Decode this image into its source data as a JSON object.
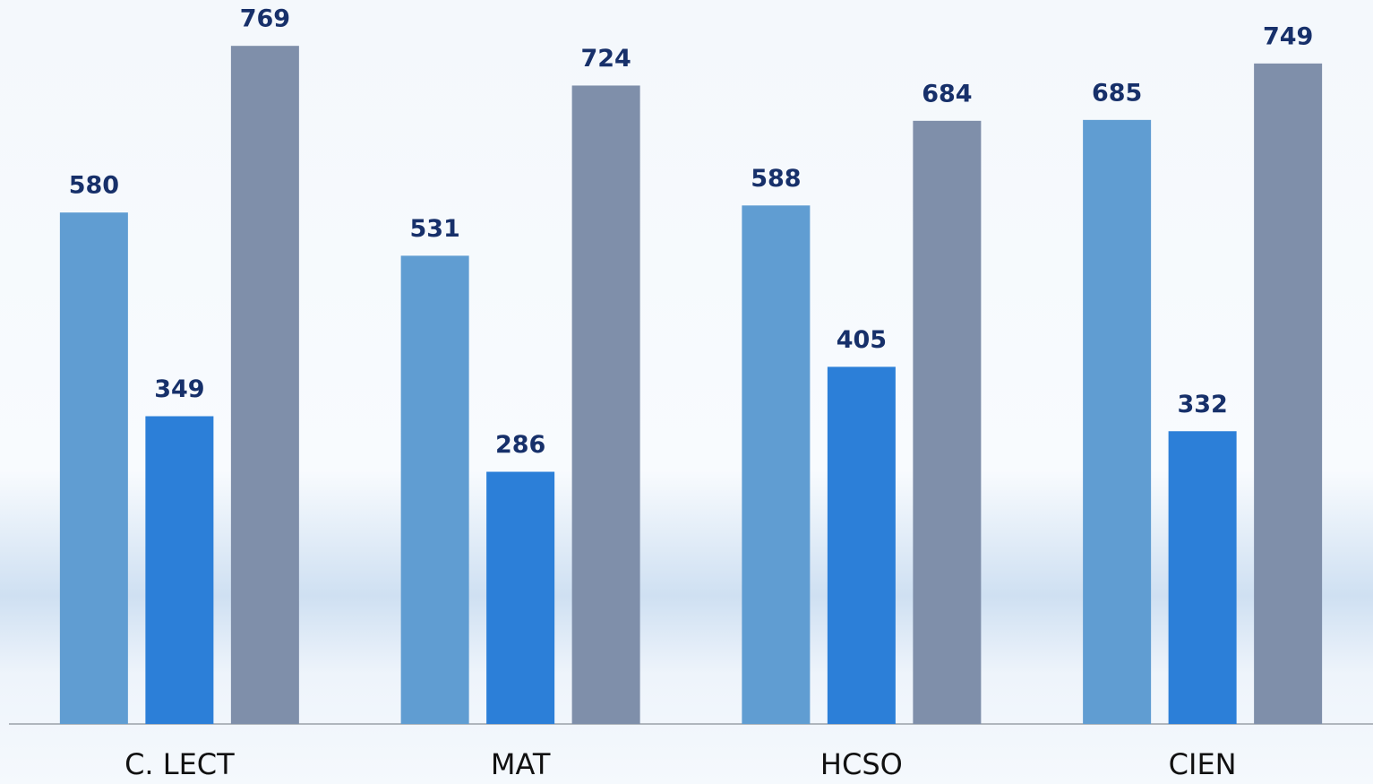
{
  "chart_data": {
    "type": "bar",
    "categories": [
      "C. LECT",
      "MAT",
      "HCSO",
      "CIEN"
    ],
    "series": [
      {
        "color": "#609dd2",
        "values": [
          580,
          531,
          588,
          685
        ]
      },
      {
        "color": "#2c7fd8",
        "values": [
          349,
          286,
          405,
          332
        ]
      },
      {
        "color": "#7f8faa",
        "values": [
          769,
          724,
          684,
          749
        ]
      }
    ],
    "ylim": [
      0,
      821
    ]
  }
}
